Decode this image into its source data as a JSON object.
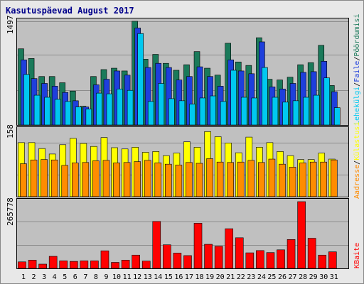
{
  "title": "Kasutuspäevad August 2017",
  "chart_data": [
    {
      "type": "bar",
      "categories": [
        "1",
        "2",
        "3",
        "4",
        "5",
        "6",
        "7",
        "8",
        "9",
        "10",
        "11",
        "12",
        "13",
        "14",
        "15",
        "16",
        "17",
        "18",
        "19",
        "20",
        "21",
        "22",
        "23",
        "24",
        "25",
        "26",
        "27",
        "28",
        "29",
        "30",
        "31"
      ],
      "weekend_days": [
        5,
        6,
        12,
        13,
        19,
        20,
        26,
        27
      ],
      "ytick": "1497",
      "ylim": [
        0,
        1497
      ],
      "grid": true,
      "series": [
        {
          "name": "Pöördumisi",
          "color": "#1a7a5a",
          "values": [
            1100,
            960,
            700,
            700,
            610,
            490,
            270,
            700,
            800,
            820,
            780,
            1497,
            950,
            1020,
            890,
            790,
            870,
            1060,
            820,
            720,
            1180,
            910,
            860,
            1260,
            660,
            650,
            690,
            870,
            900,
            1150,
            570
          ]
        },
        {
          "name": "Faile",
          "color": "#1e3fdc",
          "values": [
            940,
            670,
            600,
            560,
            470,
            350,
            260,
            580,
            660,
            780,
            720,
            1400,
            830,
            890,
            830,
            650,
            700,
            840,
            700,
            560,
            940,
            780,
            740,
            1200,
            550,
            520,
            600,
            760,
            770,
            920,
            480
          ]
        },
        {
          "name": "Lehekülgi",
          "color": "#00c8f0",
          "values": [
            730,
            430,
            400,
            370,
            340,
            260,
            230,
            460,
            450,
            520,
            500,
            1320,
            340,
            600,
            380,
            350,
            300,
            390,
            420,
            340,
            790,
            400,
            390,
            830,
            400,
            330,
            350,
            400,
            430,
            680,
            250
          ]
        }
      ]
    },
    {
      "type": "bar",
      "categories": [
        "1",
        "2",
        "3",
        "4",
        "5",
        "6",
        "7",
        "8",
        "9",
        "10",
        "11",
        "12",
        "13",
        "14",
        "15",
        "16",
        "17",
        "18",
        "19",
        "20",
        "21",
        "22",
        "23",
        "24",
        "25",
        "26",
        "27",
        "28",
        "29",
        "30",
        "31"
      ],
      "ytick": "158",
      "ylim": [
        0,
        158
      ],
      "grid": true,
      "series": [
        {
          "name": "Külastusi",
          "color": "#ffff00",
          "values": [
            128,
            128,
            114,
            101,
            123,
            138,
            126,
            119,
            140,
            116,
            113,
            117,
            105,
            107,
            97,
            103,
            130,
            117,
            154,
            142,
            127,
            104,
            141,
            117,
            128,
            107,
            97,
            88,
            88,
            103,
            89
          ]
        },
        {
          "name": "Aadresse",
          "color": "#ff8c00",
          "values": [
            78,
            87,
            88,
            87,
            74,
            80,
            81,
            85,
            86,
            80,
            81,
            83,
            86,
            80,
            77,
            75,
            81,
            79,
            90,
            82,
            81,
            82,
            86,
            81,
            89,
            77,
            70,
            80,
            82,
            82,
            87
          ]
        }
      ]
    },
    {
      "type": "bar",
      "categories": [
        "1",
        "2",
        "3",
        "4",
        "5",
        "6",
        "7",
        "8",
        "9",
        "10",
        "11",
        "12",
        "13",
        "14",
        "15",
        "16",
        "17",
        "18",
        "19",
        "20",
        "21",
        "22",
        "23",
        "24",
        "25",
        "26",
        "27",
        "28",
        "29",
        "30",
        "31"
      ],
      "ytick": "265778",
      "ylim": [
        0,
        265778
      ],
      "grid": true,
      "series": [
        {
          "name": "KBaite",
          "color": "#ff0000",
          "values": [
            26000,
            33000,
            17000,
            48000,
            30000,
            28000,
            30000,
            30000,
            70000,
            24000,
            33000,
            53000,
            29000,
            187000,
            94000,
            61000,
            51000,
            180000,
            96000,
            88000,
            158000,
            122000,
            62000,
            71000,
            63000,
            74000,
            115000,
            265778,
            120000,
            53000,
            66000
          ]
        }
      ]
    }
  ],
  "xaxis_colors": {
    "weekday": "#000000",
    "weekend": "#2e8b57"
  },
  "legend_colors": {
    "a": "#00c8f0",
    "b": "#1e3fdc",
    "c": "#1a7a5a",
    "d": "#ff8c00",
    "e": "#ffff00",
    "f": "#ff0000"
  }
}
